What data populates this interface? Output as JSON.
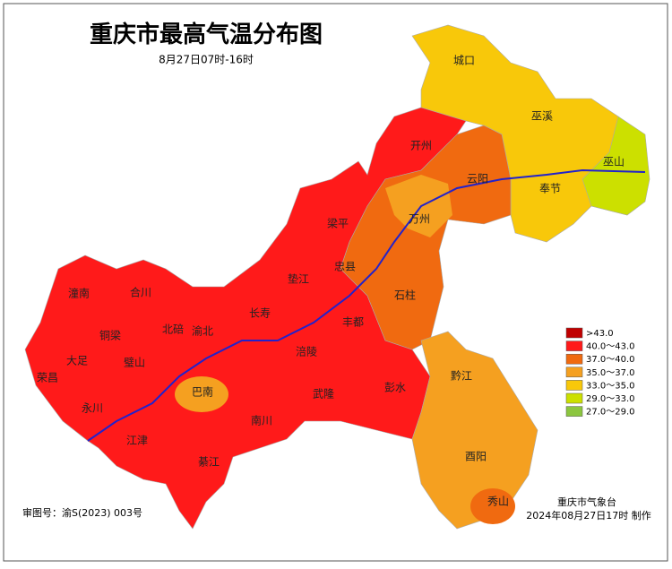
{
  "header": {
    "title": "重庆市最高气温分布图",
    "subtitle": "8月27日07时-16时"
  },
  "places": [
    "城口",
    "巫溪",
    "巫山",
    "开州",
    "云阳",
    "奉节",
    "万州",
    "梁平",
    "忠县",
    "垫江",
    "石柱",
    "潼南",
    "合川",
    "长寿",
    "丰都",
    "北碚",
    "渝北",
    "铜梁",
    "涪陵",
    "大足",
    "璧山",
    "荣昌",
    "黔江",
    "彭水",
    "巴南",
    "武隆",
    "永川",
    "南川",
    "江津",
    "酉阳",
    "綦江",
    "秀山"
  ],
  "legend": [
    {
      "label": ">43.0",
      "color": "#c00000"
    },
    {
      "label": "40.0～43.0",
      "color": "#ff1a1a"
    },
    {
      "label": "37.0～40.0",
      "color": "#f06a10"
    },
    {
      "label": "35.0～37.0",
      "color": "#f5a020"
    },
    {
      "label": "33.0～35.0",
      "color": "#f8c80a"
    },
    {
      "label": "29.0～33.0",
      "color": "#cce000"
    },
    {
      "label": "27.0～29.0",
      "color": "#8cc63f"
    }
  ],
  "footer": {
    "review": "审图号：渝S(2023) 003号",
    "agency": "重庆市气象台",
    "made": "2024年08月27日17时 制作"
  }
}
